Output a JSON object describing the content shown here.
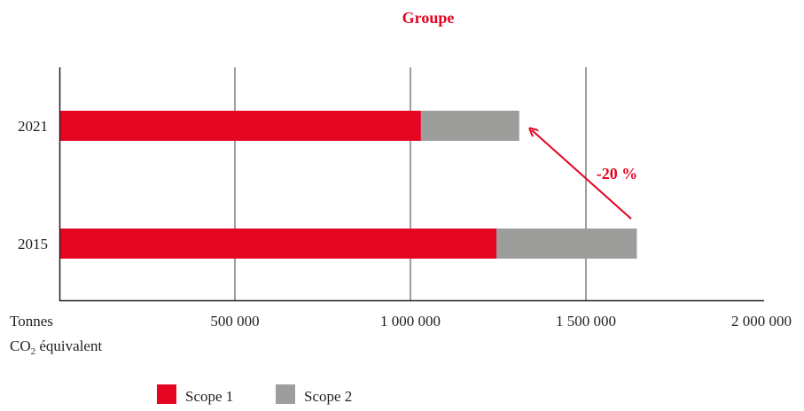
{
  "chart_data": {
    "type": "bar",
    "orientation": "horizontal",
    "stacked": true,
    "title": "Groupe",
    "categories": [
      "2021",
      "2015"
    ],
    "series": [
      {
        "name": "Scope 1",
        "values": [
          1030000,
          1245000
        ]
      },
      {
        "name": "Scope 2",
        "values": [
          280000,
          400000
        ]
      }
    ],
    "xlabel": {
      "line1": "Tonnes",
      "line2_prefix": "CO",
      "line2_sub": "2",
      "line2_suffix": " équivalent"
    },
    "x_ticks": [
      "500 000",
      "1 000 000",
      "1 500 000",
      "2 000 000"
    ],
    "x_tick_values": [
      500000,
      1000000,
      1500000,
      2000000
    ],
    "xlim": [
      0,
      2000000
    ],
    "grid": true,
    "legend_position": "bottom",
    "annotation": {
      "text": "-20 %",
      "from": "2015",
      "to": "2021"
    },
    "colors": {
      "Scope 1": "#e30521",
      "Scope 2": "#9d9d9c",
      "title": "#e30521",
      "axis": "#231f20",
      "grid": "#3c3c3b"
    }
  }
}
